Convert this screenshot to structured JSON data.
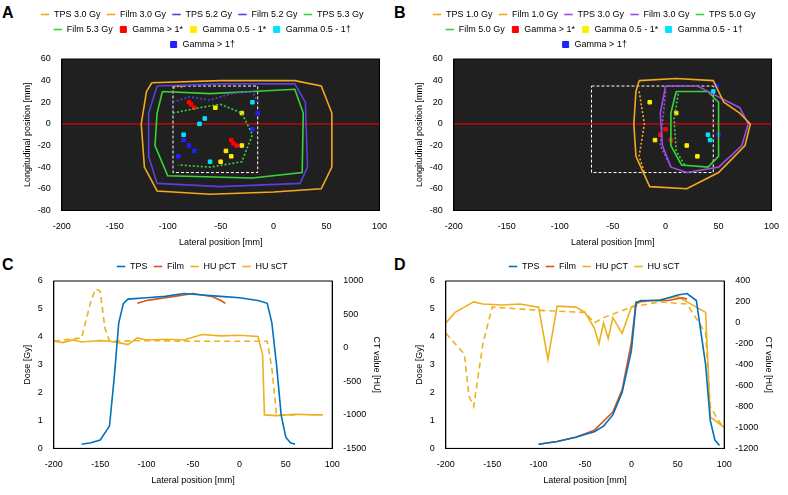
{
  "chart_data": [
    {
      "panel": "A",
      "type": "contour",
      "xlabel": "Lateral position [mm]",
      "ylabel": "Longitudinal position [mm]",
      "xlim": [
        -200,
        100
      ],
      "xticks": [
        -200,
        -150,
        -100,
        -50,
        0,
        50,
        100
      ],
      "ylim": [
        -80,
        60
      ],
      "yticks": [
        -80,
        -60,
        -40,
        -20,
        0,
        20,
        40,
        60
      ],
      "grid": false,
      "legend": "top",
      "film_region": {
        "x": [
          -95,
          -15
        ],
        "y": [
          -45,
          35
        ]
      },
      "profile_y": 0,
      "series": [
        {
          "name": "TPS 3.0 Gy",
          "type": "line",
          "line_style": "solid",
          "color": "#f4a81d",
          "x": [
            -115,
            -50,
            20,
            45,
            55,
            55,
            45,
            0,
            -60,
            -110,
            -122,
            -125,
            -120,
            -115
          ],
          "values": [
            38,
            40,
            40,
            35,
            10,
            -40,
            -60,
            -63,
            -65,
            -62,
            -40,
            0,
            30,
            38
          ]
        },
        {
          "name": "Film 3.0 Gy",
          "type": "line",
          "line_style": "dotted",
          "color": "#f4a81d",
          "x": [
            -95,
            -90,
            -85
          ],
          "values": [
            33,
            35,
            34
          ]
        },
        {
          "name": "TPS 5.2 Gy",
          "type": "line",
          "line_style": "solid",
          "color": "#5a3fdc",
          "x": [
            -110,
            -50,
            20,
            30,
            32,
            25,
            -50,
            -110,
            -118,
            -118,
            -110
          ],
          "values": [
            35,
            37,
            37,
            20,
            -40,
            -55,
            -58,
            -55,
            -30,
            10,
            35
          ]
        },
        {
          "name": "Film 5.2 Gy",
          "type": "line",
          "line_style": "dotted",
          "color": "#5a3fdc",
          "x": [
            -95,
            -80,
            -60,
            -40,
            -20,
            -15
          ],
          "values": [
            20,
            25,
            22,
            28,
            30,
            20
          ]
        },
        {
          "name": "TPS 5.3 Gy",
          "type": "line",
          "line_style": "solid",
          "color": "#3ad43a",
          "x": [
            -105,
            -60,
            -20,
            20,
            28,
            27,
            -20,
            -100,
            -112,
            -110,
            -105
          ],
          "values": [
            30,
            28,
            30,
            32,
            10,
            -45,
            -50,
            -48,
            -20,
            10,
            30
          ]
        },
        {
          "name": "Film 5.3 Gy",
          "type": "line",
          "line_style": "dotted",
          "color": "#3ad43a",
          "x": [
            -95,
            -70,
            -50,
            -30,
            -20,
            -30,
            -60,
            -90
          ],
          "values": [
            10,
            15,
            18,
            10,
            -10,
            -35,
            -40,
            -38
          ]
        },
        {
          "name": "Gamma > 1*",
          "type": "scatter",
          "marker": "square",
          "color": "#ff0000",
          "x": [
            -80,
            -75,
            -78,
            -40,
            -35,
            -38
          ],
          "values": [
            20,
            15,
            18,
            -15,
            -20,
            -18
          ]
        },
        {
          "name": "Gamma 0.5 - 1*",
          "type": "scatter",
          "marker": "square",
          "color": "#ffee00",
          "x": [
            -45,
            -40,
            -30,
            -55,
            -30,
            -50
          ],
          "values": [
            -25,
            -30,
            -20,
            15,
            10,
            -35
          ]
        },
        {
          "name": "Gamma 0.5 - 1†",
          "type": "scatter",
          "marker": "square",
          "color": "#00e5ff",
          "x": [
            -85,
            -70,
            -60,
            -20,
            -65
          ],
          "values": [
            -10,
            0,
            -35,
            20,
            5
          ]
        },
        {
          "name": "Gamma > 1†",
          "type": "scatter",
          "marker": "square",
          "color": "#2020ff",
          "x": [
            -80,
            -75,
            -20,
            -15,
            -90,
            -85
          ],
          "values": [
            -20,
            -25,
            -5,
            10,
            -30,
            -15
          ]
        }
      ]
    },
    {
      "panel": "B",
      "type": "contour",
      "xlabel": "Lateral position [mm]",
      "ylabel": "Longitudinal position [mm]",
      "xlim": [
        -200,
        100
      ],
      "xticks": [
        -200,
        -150,
        -100,
        -50,
        0,
        50,
        100
      ],
      "ylim": [
        -80,
        60
      ],
      "yticks": [
        -80,
        -60,
        -40,
        -20,
        0,
        20,
        40,
        60
      ],
      "grid": false,
      "legend": "top",
      "film_region": {
        "x": [
          -70,
          45
        ],
        "y": [
          -45,
          35
        ]
      },
      "profile_y": 0,
      "series": [
        {
          "name": "TPS 1.0 Gy",
          "type": "line",
          "line_style": "solid",
          "color": "#f4a81d",
          "x": [
            -25,
            10,
            45,
            55,
            70,
            80,
            75,
            50,
            20,
            -15,
            -28,
            -30,
            -28,
            -25
          ],
          "values": [
            40,
            42,
            40,
            20,
            10,
            0,
            -20,
            -45,
            -60,
            -58,
            -30,
            0,
            30,
            40
          ]
        },
        {
          "name": "Film 1.0 Gy",
          "type": "line",
          "line_style": "dotted",
          "color": "#f4a81d",
          "x": [
            -25,
            -20,
            -25,
            -20
          ],
          "values": [
            30,
            0,
            -30,
            -45
          ]
        },
        {
          "name": "TPS 3.0 Gy",
          "type": "line",
          "line_style": "solid",
          "color": "#9a4fe0",
          "x": [
            0,
            30,
            50,
            70,
            78,
            72,
            50,
            20,
            5,
            -3,
            -5,
            0
          ],
          "values": [
            35,
            35,
            25,
            15,
            0,
            -20,
            -40,
            -45,
            -40,
            -20,
            10,
            35
          ]
        },
        {
          "name": "Film 3.0 Gy",
          "type": "line",
          "line_style": "dotted",
          "color": "#9a4fe0",
          "x": [
            0,
            -2,
            -5,
            5
          ],
          "values": [
            30,
            10,
            -20,
            -40
          ]
        },
        {
          "name": "TPS 5.0 Gy",
          "type": "line",
          "line_style": "solid",
          "color": "#3ad43a",
          "x": [
            10,
            40,
            50,
            50,
            40,
            15,
            5,
            5,
            10
          ],
          "values": [
            30,
            30,
            20,
            -30,
            -40,
            -38,
            -20,
            10,
            30
          ]
        },
        {
          "name": "Film 5.0 Gy",
          "type": "line",
          "line_style": "dotted",
          "color": "#3ad43a",
          "x": [
            12,
            8,
            10,
            18
          ],
          "values": [
            28,
            5,
            -25,
            -38
          ]
        },
        {
          "name": "Gamma > 1*",
          "type": "scatter",
          "marker": "square",
          "color": "#ff0000",
          "x": [
            0,
            -5,
            5
          ],
          "values": [
            -5,
            -10,
            -15
          ]
        },
        {
          "name": "Gamma 0.5 - 1*",
          "type": "scatter",
          "marker": "square",
          "color": "#ffee00",
          "x": [
            -15,
            10,
            20,
            30,
            -10
          ],
          "values": [
            20,
            10,
            -20,
            -30,
            -15
          ]
        },
        {
          "name": "Gamma 0.5 - 1†",
          "type": "scatter",
          "marker": "square",
          "color": "#00e5ff",
          "x": [
            40,
            42,
            45
          ],
          "values": [
            -10,
            -15,
            30
          ]
        },
        {
          "name": "Gamma > 1†",
          "type": "scatter",
          "marker": "square",
          "color": "#2020ff",
          "x": [
            48,
            50
          ],
          "values": [
            35,
            -10
          ]
        }
      ]
    },
    {
      "panel": "C",
      "type": "line",
      "xlabel": "Lateral position [mm]",
      "ylabel": "Dose [Gy]",
      "y2label": "CT value [HU]",
      "xlim": [
        -200,
        100
      ],
      "xticks": [
        -200,
        -150,
        -100,
        -50,
        0,
        50,
        100
      ],
      "ylim": [
        0,
        6
      ],
      "yticks": [
        0,
        1,
        2,
        3,
        4,
        5,
        6
      ],
      "y2lim": [
        -1500,
        1000
      ],
      "y2ticks": [
        -1500,
        -1000,
        -500,
        0,
        500,
        1000
      ],
      "grid": false,
      "legend": "top",
      "series": [
        {
          "name": "TPS",
          "type": "line",
          "line_style": "solid",
          "color": "#0072bd",
          "x": [
            -170,
            -160,
            -150,
            -140,
            -135,
            -130,
            -125,
            -120,
            -100,
            -80,
            -60,
            -40,
            -20,
            0,
            20,
            30,
            35,
            40,
            45,
            50,
            55,
            60
          ],
          "values": [
            0.15,
            0.2,
            0.3,
            0.8,
            2.5,
            4.5,
            5.2,
            5.35,
            5.4,
            5.45,
            5.55,
            5.5,
            5.45,
            5.4,
            5.3,
            5.2,
            4.5,
            3,
            1.2,
            0.4,
            0.2,
            0.15
          ]
        },
        {
          "name": "Film",
          "type": "line",
          "line_style": "solid",
          "color": "#d95319",
          "x": [
            -110,
            -100,
            -90,
            -80,
            -70,
            -60,
            -50,
            -40,
            -30,
            -20,
            -15
          ],
          "values": [
            5.2,
            5.3,
            5.35,
            5.4,
            5.45,
            5.5,
            5.55,
            5.5,
            5.45,
            5.3,
            5.2
          ]
        },
        {
          "name": "HU pCT",
          "type": "line",
          "line_style": "solid",
          "color": "#edb120",
          "axis": "y2",
          "x": [
            -200,
            -190,
            -180,
            -170,
            -160,
            -150,
            -140,
            -130,
            -120,
            -110,
            -100,
            -80,
            -60,
            -40,
            -20,
            0,
            20,
            25,
            27,
            40,
            60,
            80,
            90
          ],
          "values": [
            100,
            80,
            120,
            90,
            100,
            110,
            100,
            80,
            50,
            150,
            120,
            130,
            120,
            200,
            180,
            190,
            170,
            -100,
            -1000,
            -1010,
            -990,
            -1000,
            -1000
          ]
        },
        {
          "name": "HU sCT",
          "type": "line",
          "line_style": "dashed",
          "color": "#edb120",
          "axis": "y2",
          "x": [
            -200,
            -170,
            -160,
            -155,
            -150,
            -145,
            -140,
            -100,
            -50,
            0,
            30,
            35,
            40,
            60
          ],
          "values": [
            100,
            150,
            700,
            880,
            850,
            300,
            100,
            110,
            100,
            100,
            100,
            -300,
            -1000,
            -1000
          ]
        }
      ]
    },
    {
      "panel": "D",
      "type": "line",
      "xlabel": "Lateral position [mm]",
      "ylabel": "Dose [Gy]",
      "y2label": "CT value [HU]",
      "xlim": [
        -200,
        100
      ],
      "xticks": [
        -200,
        -150,
        -100,
        -50,
        0,
        50,
        100
      ],
      "ylim": [
        0,
        6
      ],
      "yticks": [
        0,
        1,
        2,
        3,
        4,
        5,
        6
      ],
      "y2lim": [
        -1200,
        400
      ],
      "y2ticks": [
        -1200,
        -1000,
        -800,
        -600,
        -400,
        -200,
        0,
        200,
        400
      ],
      "grid": false,
      "legend": "top",
      "series": [
        {
          "name": "TPS",
          "type": "line",
          "line_style": "solid",
          "color": "#0072bd",
          "x": [
            -100,
            -80,
            -60,
            -40,
            -30,
            -20,
            -10,
            0,
            5,
            10,
            30,
            50,
            60,
            70,
            80,
            85,
            90,
            95
          ],
          "values": [
            0.15,
            0.25,
            0.4,
            0.6,
            0.8,
            1.2,
            2,
            3.5,
            5.2,
            5.3,
            5.3,
            5.5,
            5.55,
            5.3,
            3,
            1,
            0.3,
            0.1
          ]
        },
        {
          "name": "Film",
          "type": "line",
          "line_style": "solid",
          "color": "#d95319",
          "x": [
            -100,
            -80,
            -60,
            -40,
            -20,
            -10,
            0,
            5,
            20,
            40,
            55,
            60
          ],
          "values": [
            0.15,
            0.25,
            0.4,
            0.65,
            1.3,
            2.1,
            3.8,
            5.25,
            5.3,
            5.3,
            5.4,
            5.35
          ]
        },
        {
          "name": "HU pCT",
          "type": "line",
          "line_style": "solid",
          "color": "#edb120",
          "axis": "y2",
          "x": [
            -200,
            -190,
            -180,
            -170,
            -160,
            -140,
            -120,
            -100,
            -90,
            -80,
            -60,
            -50,
            -40,
            -35,
            -30,
            -25,
            -20,
            -10,
            0,
            10,
            30,
            50,
            60,
            80,
            85,
            100
          ],
          "values": [
            0,
            100,
            150,
            200,
            180,
            170,
            180,
            150,
            -350,
            160,
            150,
            100,
            -50,
            -200,
            0,
            -150,
            50,
            -100,
            150,
            200,
            220,
            250,
            200,
            100,
            -900,
            -1000
          ]
        },
        {
          "name": "HU sCT",
          "type": "line",
          "line_style": "dashed",
          "color": "#edb120",
          "axis": "y2",
          "x": [
            -200,
            -190,
            -180,
            -175,
            -170,
            -165,
            -160,
            -150,
            -100,
            -50,
            -40,
            -30,
            0,
            30,
            60,
            80,
            85,
            95,
            100
          ],
          "values": [
            -100,
            -200,
            -300,
            -700,
            -800,
            -500,
            -200,
            150,
            120,
            100,
            0,
            50,
            150,
            200,
            180,
            -100,
            -800,
            -950,
            -1000
          ]
        }
      ]
    }
  ]
}
